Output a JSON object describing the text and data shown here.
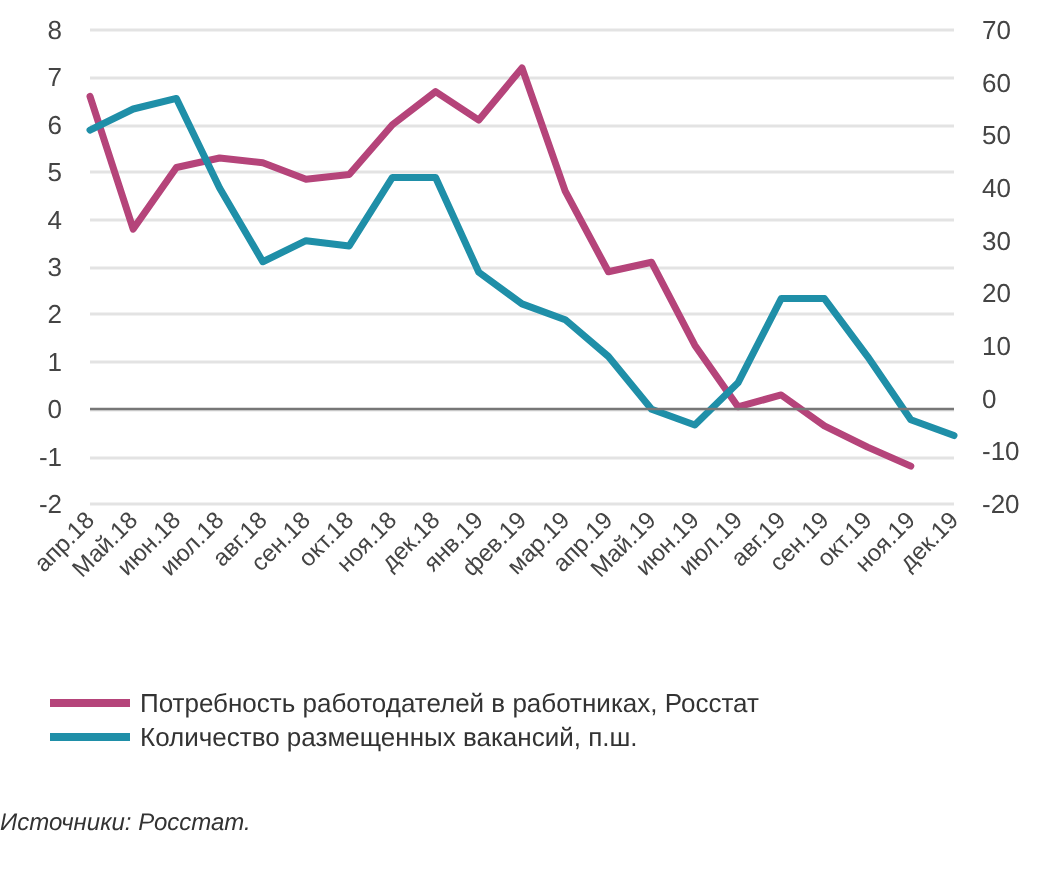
{
  "chart_data": {
    "type": "line",
    "categories": [
      "апр.18",
      "Май.18",
      "июн.18",
      "июл.18",
      "авг.18",
      "сен.18",
      "окт.18",
      "ноя.18",
      "дек.18",
      "янв.19",
      "фев.19",
      "мар.19",
      "апр.19",
      "Май.19",
      "июн.19",
      "июл.19",
      "авг.19",
      "сен.19",
      "окт.19",
      "ноя.19",
      "дек.19"
    ],
    "series": [
      {
        "name": "Потребность работодателей в работниках, Росстат",
        "color": "#b5447a",
        "values": [
          6.6,
          3.8,
          5.1,
          5.3,
          5.2,
          4.85,
          4.95,
          6.0,
          6.7,
          6.1,
          7.2,
          4.6,
          2.9,
          3.1,
          1.35,
          0.05,
          0.3,
          -0.35,
          -0.8,
          -1.2,
          null
        ]
      },
      {
        "name": "Количество размещенных вакансий, п.ш.",
        "color": "#1f8fa8",
        "axis": "y2",
        "values": [
          51,
          55,
          57,
          40,
          26,
          30,
          29,
          42,
          42,
          24,
          18,
          15,
          8,
          -2,
          -5,
          3,
          19,
          19,
          8,
          -4,
          -7
        ]
      }
    ],
    "ylim": [
      -2,
      8
    ],
    "yticks": [
      -2,
      -1,
      0,
      1,
      2,
      3,
      4,
      5,
      6,
      7,
      8
    ],
    "y2lim": [
      -20,
      70
    ],
    "y2ticks": [
      -20,
      -10,
      0,
      10,
      20,
      30,
      40,
      50,
      60,
      70
    ],
    "grid": "y",
    "legend": "bottom",
    "marker": "none",
    "line_style": "solid",
    "annotations": [
      "Источники: Росстат."
    ]
  }
}
